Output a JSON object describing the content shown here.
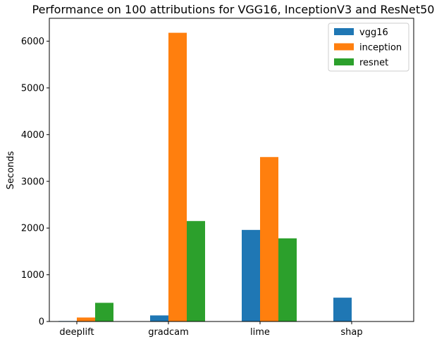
{
  "chart_data": {
    "type": "bar",
    "title": "Performance on 100 attributions for VGG16, InceptionV3 and ResNet50",
    "xlabel": "",
    "ylabel": "Seconds",
    "categories": [
      "deeplift",
      "gradcam",
      "lime",
      "shap"
    ],
    "series": [
      {
        "name": "vgg16",
        "color": "#1f77b4",
        "values": [
          10,
          130,
          1960,
          510
        ]
      },
      {
        "name": "inception",
        "color": "#ff7f0e",
        "values": [
          85,
          6180,
          3520,
          0
        ]
      },
      {
        "name": "resnet",
        "color": "#2ca02c",
        "values": [
          400,
          2150,
          1780,
          0
        ]
      }
    ],
    "ylim": [
      0,
      6490
    ],
    "yticks": [
      0,
      1000,
      2000,
      3000,
      4000,
      5000,
      6000
    ],
    "ytick_labels": [
      "0",
      "1000",
      "2000",
      "3000",
      "4000",
      "5000",
      "6000"
    ],
    "grid": false,
    "legend_position": "top-right"
  }
}
